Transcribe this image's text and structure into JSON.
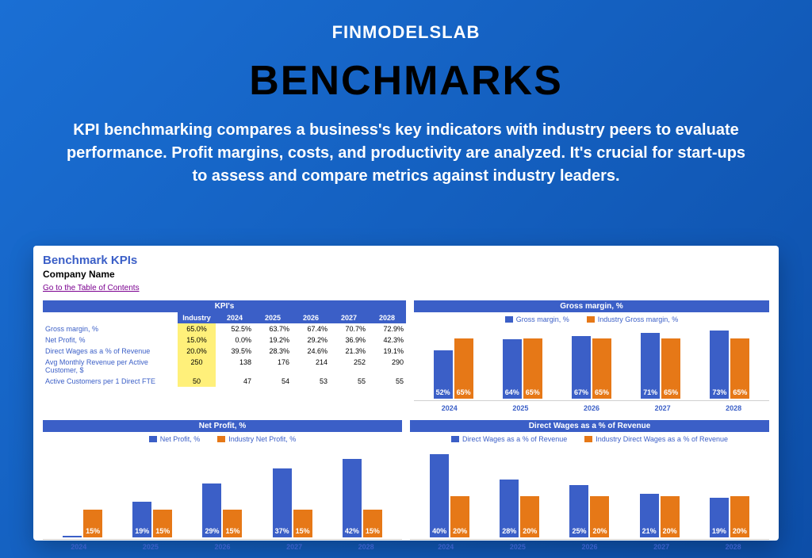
{
  "brand": "FINMODELSLAB",
  "title": "BENCHMARKS",
  "description": "KPI benchmarking compares a business's key indicators with industry peers to evaluate performance. Profit margins, costs, and productivity are analyzed. It's crucial for start-ups to assess and compare metrics against industry leaders.",
  "sheet": {
    "title": "Benchmark KPIs",
    "company": "Company Name",
    "toc": "Go to the Table of Contents",
    "kpi_header": "KPI's",
    "columns": [
      "Industry",
      "2024",
      "2025",
      "2026",
      "2027",
      "2028"
    ],
    "rows": [
      {
        "label": "Gross margin, %",
        "cells": [
          "65.0%",
          "52.5%",
          "63.7%",
          "67.4%",
          "70.7%",
          "72.9%"
        ]
      },
      {
        "label": "Net Profit, %",
        "cells": [
          "15.0%",
          "0.0%",
          "19.2%",
          "29.2%",
          "36.9%",
          "42.3%"
        ]
      },
      {
        "label": "Direct Wages as a % of Revenue",
        "cells": [
          "20.0%",
          "39.5%",
          "28.3%",
          "24.6%",
          "21.3%",
          "19.1%"
        ]
      },
      {
        "label": "Avg Monthly Revenue per Active Customer, $",
        "cells": [
          "250",
          "138",
          "176",
          "214",
          "252",
          "290"
        ]
      },
      {
        "label": "Active Customers per 1 Direct FTE",
        "cells": [
          "50",
          "47",
          "54",
          "53",
          "55",
          "55"
        ]
      }
    ]
  },
  "colors": {
    "series1": "#3b5fc7",
    "series2": "#e67817",
    "highlight": "#fff07a"
  },
  "charts": {
    "gross_margin": {
      "title": "Gross margin, %",
      "legend": [
        "Gross margin, %",
        "Industry Gross margin, %"
      ],
      "years": [
        "2024",
        "2025",
        "2026",
        "2027",
        "2028"
      ],
      "series1": [
        52,
        64,
        67,
        71,
        73
      ],
      "series2": [
        65,
        65,
        65,
        65,
        65
      ],
      "max": 80
    },
    "net_profit": {
      "title": "Net Profit, %",
      "legend": [
        "Net Profit, %",
        "Industry Net Profit, %"
      ],
      "years": [
        "2024",
        "2025",
        "2026",
        "2027",
        "2028"
      ],
      "series1": [
        0,
        19,
        29,
        37,
        42
      ],
      "series2": [
        15,
        15,
        15,
        15,
        15
      ],
      "max": 50
    },
    "direct_wages": {
      "title": "Direct Wages as a % of Revenue",
      "legend": [
        "Direct Wages as a % of Revenue",
        "Industry Direct Wages as a % of Revenue"
      ],
      "years": [
        "2024",
        "2025",
        "2026",
        "2027",
        "2028"
      ],
      "series1": [
        40,
        28,
        25,
        21,
        19
      ],
      "series2": [
        20,
        20,
        20,
        20,
        20
      ],
      "max": 45
    }
  }
}
